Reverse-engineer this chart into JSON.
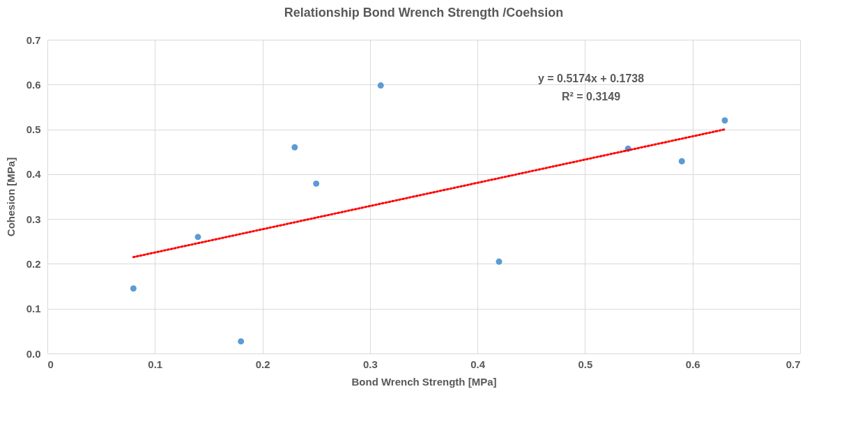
{
  "chart_data": {
    "type": "scatter",
    "title": "Relationship Bond Wrench Strength /Coehsion",
    "xlabel": "Bond Wrench Strength [MPa]",
    "ylabel": "Cohesion [MPa]",
    "annotations": [
      "y = 0.5174x + 0.1738",
      "R² = 0.3149"
    ],
    "xlim": [
      0,
      0.7
    ],
    "xticks": [
      {
        "value": 0,
        "label": "0"
      },
      0.1,
      0.2,
      0.3,
      0.4,
      0.5,
      0.6,
      0.7
    ],
    "ylim": [
      0,
      0.7
    ],
    "yticks": [
      {
        "value": 0,
        "label": "0.0"
      },
      0.1,
      0.2,
      0.3,
      0.4,
      0.5,
      0.6,
      0.7
    ],
    "grid": true,
    "series": [
      {
        "marker": "circle",
        "color": "#5b9bd5",
        "x": [
          0.08,
          0.14,
          0.18,
          0.23,
          0.25,
          0.31,
          0.42,
          0.54,
          0.59,
          0.63
        ],
        "values": [
          0.145,
          0.26,
          0.027,
          0.46,
          0.379,
          0.598,
          0.205,
          0.457,
          0.429,
          0.52
        ]
      },
      {
        "type": "line",
        "color": "#ff0000",
        "line_style": "dotted",
        "x": [
          0.08,
          0.63
        ],
        "values": [
          0.215,
          0.5
        ]
      }
    ]
  }
}
